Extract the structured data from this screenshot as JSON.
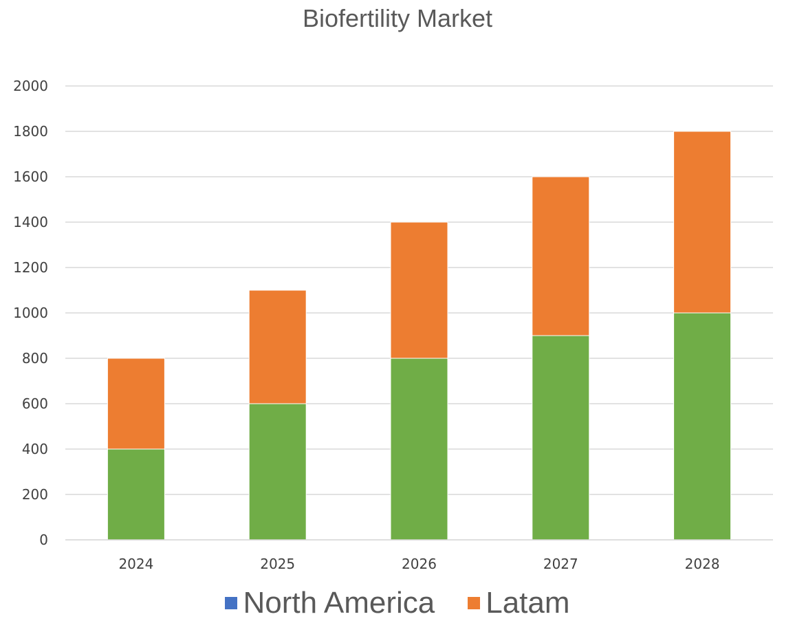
{
  "chart_data": {
    "type": "bar",
    "stacked": true,
    "title": "Biofertility Market",
    "xlabel": "",
    "ylabel": "",
    "categories": [
      "2024",
      "2025",
      "2026",
      "2027",
      "2028"
    ],
    "series": [
      {
        "values": [
          400,
          600,
          800,
          900,
          1000
        ],
        "color": "#70AD47"
      },
      {
        "name": "Latam",
        "values": [
          400,
          500,
          600,
          700,
          800
        ],
        "color": "#ED7D31"
      }
    ],
    "ylim": [
      0,
      2000
    ],
    "yticks": [
      "0",
      "200",
      "400",
      "600",
      "800",
      "1000",
      "1200",
      "1400",
      "1600",
      "1800",
      "2000"
    ],
    "grid": true,
    "legend": {
      "placement": "bottom",
      "entries": [
        {
          "label": "North America",
          "color": "#4472C4"
        },
        {
          "label": "Latam",
          "color": "#ED7D31"
        }
      ]
    }
  }
}
